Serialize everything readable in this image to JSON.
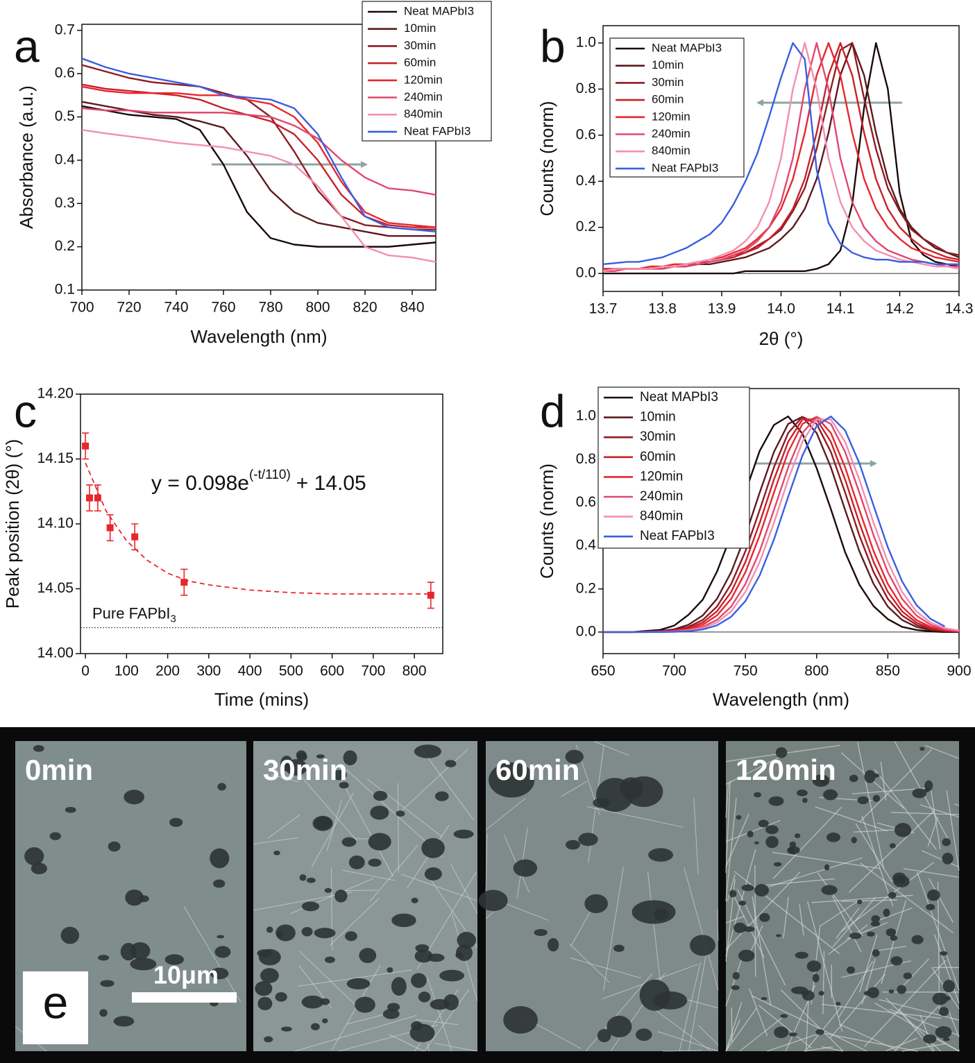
{
  "chart_data": [
    {
      "type": "line",
      "panel_label": "a",
      "xlabel": "Wavelength (nm)",
      "ylabel": "Absorbance (a.u.)",
      "x": [
        700,
        710,
        720,
        730,
        740,
        750,
        760,
        770,
        780,
        790,
        800,
        810,
        820,
        830,
        840,
        850
      ],
      "series": [
        {
          "name": "Neat MAPbI3",
          "color": "#1a0a0a",
          "values": [
            0.525,
            0.515,
            0.505,
            0.5,
            0.495,
            0.47,
            0.39,
            0.28,
            0.22,
            0.205,
            0.2,
            0.2,
            0.2,
            0.2,
            0.205,
            0.21
          ]
        },
        {
          "name": "10min",
          "color": "#5c1a1f",
          "values": [
            0.535,
            0.525,
            0.515,
            0.505,
            0.5,
            0.49,
            0.475,
            0.41,
            0.33,
            0.28,
            0.255,
            0.245,
            0.235,
            0.225,
            0.225,
            0.225
          ]
        },
        {
          "name": "30min",
          "color": "#8e1c22",
          "values": [
            0.62,
            0.605,
            0.59,
            0.58,
            0.575,
            0.57,
            0.555,
            0.54,
            0.5,
            0.42,
            0.33,
            0.27,
            0.25,
            0.245,
            0.24,
            0.24
          ]
        },
        {
          "name": "60min",
          "color": "#c8202a",
          "values": [
            0.575,
            0.565,
            0.56,
            0.555,
            0.55,
            0.54,
            0.52,
            0.505,
            0.49,
            0.46,
            0.4,
            0.32,
            0.27,
            0.25,
            0.245,
            0.245
          ]
        },
        {
          "name": "120min",
          "color": "#e8262e",
          "values": [
            0.57,
            0.56,
            0.555,
            0.555,
            0.555,
            0.55,
            0.55,
            0.54,
            0.53,
            0.5,
            0.44,
            0.35,
            0.28,
            0.255,
            0.25,
            0.245
          ]
        },
        {
          "name": "240min",
          "color": "#e2476e",
          "values": [
            0.52,
            0.515,
            0.515,
            0.51,
            0.51,
            0.51,
            0.51,
            0.505,
            0.5,
            0.48,
            0.45,
            0.4,
            0.36,
            0.335,
            0.33,
            0.32
          ]
        },
        {
          "name": "840min",
          "color": "#f28fb0",
          "values": [
            0.47,
            0.462,
            0.455,
            0.448,
            0.44,
            0.435,
            0.43,
            0.42,
            0.41,
            0.39,
            0.34,
            0.27,
            0.2,
            0.18,
            0.175,
            0.165
          ]
        },
        {
          "name": "Neat FAPbI3",
          "color": "#3a5ee0",
          "values": [
            0.635,
            0.615,
            0.6,
            0.59,
            0.58,
            0.57,
            0.55,
            0.545,
            0.54,
            0.52,
            0.46,
            0.36,
            0.27,
            0.245,
            0.24,
            0.235
          ]
        }
      ],
      "xlim": [
        700,
        850
      ],
      "ylim": [
        0.1,
        0.714
      ],
      "xticks": [
        700,
        720,
        740,
        760,
        780,
        800,
        820,
        840
      ],
      "yticks": [
        0.1,
        0.2,
        0.3,
        0.4,
        0.5,
        0.6,
        0.7
      ],
      "legend": "upper right"
    },
    {
      "type": "line",
      "panel_label": "b",
      "xlabel": "2θ (°)",
      "ylabel": "Counts (norm)",
      "x": [
        13.7,
        13.72,
        13.74,
        13.76,
        13.78,
        13.8,
        13.82,
        13.84,
        13.86,
        13.88,
        13.9,
        13.92,
        13.94,
        13.96,
        13.98,
        14,
        14.02,
        14.04,
        14.06,
        14.08,
        14.1,
        14.12,
        14.14,
        14.16,
        14.18,
        14.2,
        14.22,
        14.24,
        14.26,
        14.28,
        14.3
      ],
      "series": [
        {
          "name": "Neat MAPbI3",
          "color": "#1a0a0a",
          "values": [
            0,
            0,
            0,
            0,
            0,
            0,
            0,
            0,
            0,
            0,
            0,
            0,
            0.01,
            0.01,
            0.01,
            0.01,
            0.01,
            0.01,
            0.02,
            0.04,
            0.1,
            0.3,
            0.72,
            1,
            0.8,
            0.35,
            0.14,
            0.08,
            0.05,
            0.04,
            0.03
          ]
        },
        {
          "name": "10min",
          "color": "#5c1a1f",
          "values": [
            0.01,
            0.02,
            0.02,
            0.02,
            0.02,
            0.02,
            0.03,
            0.03,
            0.04,
            0.04,
            0.05,
            0.06,
            0.07,
            0.09,
            0.11,
            0.15,
            0.2,
            0.28,
            0.41,
            0.61,
            0.86,
            1,
            0.86,
            0.61,
            0.41,
            0.28,
            0.2,
            0.15,
            0.11,
            0.09,
            0.07
          ]
        },
        {
          "name": "30min",
          "color": "#8e1c22",
          "values": [
            0.02,
            0.02,
            0.02,
            0.02,
            0.03,
            0.03,
            0.03,
            0.04,
            0.05,
            0.05,
            0.06,
            0.08,
            0.09,
            0.12,
            0.15,
            0.19,
            0.27,
            0.37,
            0.54,
            0.76,
            0.97,
            1,
            0.76,
            0.54,
            0.37,
            0.27,
            0.19,
            0.15,
            0.12,
            0.09,
            0.08
          ]
        },
        {
          "name": "60min",
          "color": "#c8202a",
          "values": [
            0.01,
            0.02,
            0.02,
            0.02,
            0.02,
            0.03,
            0.03,
            0.04,
            0.04,
            0.05,
            0.06,
            0.07,
            0.09,
            0.11,
            0.15,
            0.2,
            0.28,
            0.41,
            0.61,
            0.86,
            1,
            0.86,
            0.61,
            0.41,
            0.28,
            0.2,
            0.15,
            0.11,
            0.09,
            0.07,
            0.06
          ]
        },
        {
          "name": "120min",
          "color": "#e8262e",
          "values": [
            0.02,
            0.02,
            0.02,
            0.02,
            0.03,
            0.03,
            0.04,
            0.04,
            0.05,
            0.06,
            0.07,
            0.09,
            0.11,
            0.15,
            0.2,
            0.28,
            0.41,
            0.61,
            0.86,
            1,
            0.86,
            0.61,
            0.41,
            0.28,
            0.2,
            0.15,
            0.11,
            0.09,
            0.07,
            0.06,
            0.05
          ]
        },
        {
          "name": "240min",
          "color": "#e2476e",
          "values": [
            0.01,
            0.01,
            0.02,
            0.02,
            0.02,
            0.02,
            0.03,
            0.03,
            0.04,
            0.05,
            0.06,
            0.08,
            0.1,
            0.14,
            0.2,
            0.31,
            0.5,
            0.8,
            1,
            0.8,
            0.5,
            0.31,
            0.2,
            0.14,
            0.1,
            0.08,
            0.06,
            0.05,
            0.04,
            0.03,
            0.03
          ]
        },
        {
          "name": "840min",
          "color": "#f28fb0",
          "values": [
            0.01,
            0.02,
            0.02,
            0.02,
            0.02,
            0.03,
            0.03,
            0.04,
            0.05,
            0.06,
            0.08,
            0.1,
            0.14,
            0.2,
            0.31,
            0.5,
            0.8,
            1,
            0.8,
            0.5,
            0.31,
            0.2,
            0.14,
            0.1,
            0.08,
            0.06,
            0.05,
            0.04,
            0.03,
            0.03,
            0.02
          ]
        },
        {
          "name": "Neat FAPbI3",
          "color": "#3a5ee0",
          "values": [
            0.04,
            0.045,
            0.05,
            0.05,
            0.06,
            0.07,
            0.09,
            0.11,
            0.14,
            0.17,
            0.22,
            0.3,
            0.4,
            0.52,
            0.68,
            0.85,
            1,
            0.93,
            0.45,
            0.22,
            0.13,
            0.09,
            0.07,
            0.06,
            0.06,
            0.05,
            0.05,
            0.05,
            0.04,
            0.04,
            0.04
          ]
        }
      ],
      "xlim": [
        13.7,
        14.3
      ],
      "ylim": [
        -0.078,
        1.075
      ],
      "xticks": [
        13.7,
        13.8,
        13.9,
        {
          "value": 14,
          "label": "14.0"
        },
        14.1,
        14.2,
        14.3
      ],
      "yticks": [
        {
          "value": 0,
          "label": "0.0"
        },
        0.2,
        0.4,
        0.6,
        0.8,
        {
          "value": 1,
          "label": "1.0"
        }
      ],
      "legend": "upper left"
    },
    {
      "type": "scatter",
      "panel_label": "c",
      "xlabel": "Time (mins)",
      "ylabel": "Peak position (2θ) (°)",
      "x": [
        0,
        10,
        30,
        60,
        120,
        240,
        840
      ],
      "values": [
        14.16,
        14.12,
        14.12,
        14.097,
        14.09,
        14.055,
        14.045
      ],
      "errors": [
        0.01,
        0.01,
        0.01,
        0.01,
        0.01,
        0.01,
        0.01
      ],
      "color": "#e8262e",
      "fit": {
        "x": [
          0,
          50,
          100,
          150,
          200,
          250,
          300,
          400,
          500,
          600,
          700,
          840
        ],
        "values": [
          14.147,
          14.11,
          14.087,
          14.072,
          14.062,
          14.056,
          14.053,
          14.049,
          14.047,
          14.046,
          14.046,
          14.046
        ]
      },
      "equation": {
        "text": "y = 0.098e",
        "exponent": "(-t/110)",
        "tail": "+ 14.05"
      },
      "reference": {
        "value": 14.02,
        "label": "Pure FAPbI",
        "label_sub": "3"
      },
      "xlim": [
        -12,
        869
      ],
      "ylim": [
        14,
        14.2
      ],
      "xticks": [
        0,
        100,
        200,
        300,
        400,
        500,
        600,
        700,
        800
      ],
      "yticks": [
        {
          "value": 14,
          "label": "14.00"
        },
        14.05,
        {
          "value": 14.1,
          "label": "14.10"
        },
        14.15,
        {
          "value": 14.2,
          "label": "14.20"
        }
      ]
    },
    {
      "type": "line",
      "panel_label": "d",
      "xlabel": "Wavelength (nm)",
      "ylabel": "Counts (norm)",
      "x": [
        650,
        660,
        670,
        680,
        690,
        700,
        710,
        720,
        730,
        740,
        750,
        760,
        770,
        780,
        790,
        800,
        810,
        820,
        830,
        840,
        850,
        860,
        870,
        880,
        890,
        900
      ],
      "series": [
        {
          "name": "Neat MAPbI3",
          "color": "#1a0a0a",
          "values": [
            0,
            0,
            0,
            0.005,
            0.01,
            0.03,
            0.08,
            0.15,
            0.28,
            0.45,
            0.65,
            0.84,
            0.96,
            1,
            0.92,
            0.76,
            0.57,
            0.37,
            0.22,
            0.12,
            0.06,
            0.024,
            0.01,
            0.003,
            0,
            0
          ]
        },
        {
          "name": "10min",
          "color": "#5c1a1f",
          "values": [
            0,
            0,
            0,
            0.002,
            0.005,
            0.013,
            0.034,
            0.077,
            0.154,
            0.278,
            0.448,
            0.647,
            0.835,
            0.965,
            0.998,
            0.923,
            0.764,
            0.566,
            0.375,
            0.223,
            0.118,
            0.056,
            0.024,
            0.009,
            0.003,
            0.001
          ]
        },
        {
          "name": "30min",
          "color": "#8e1c22",
          "values": [
            0,
            0,
            0,
            0.001,
            0.003,
            0.009,
            0.024,
            0.056,
            0.118,
            0.223,
            0.375,
            0.566,
            0.764,
            0.923,
            0.998,
            0.965,
            0.835,
            0.647,
            0.448,
            0.278,
            0.154,
            0.077,
            0.034,
            0.013,
            0.005,
            0.002
          ]
        },
        {
          "name": "60min",
          "color": "#c8202a",
          "values": [
            0,
            0,
            0,
            0.001,
            0.002,
            0.007,
            0.018,
            0.044,
            0.096,
            0.186,
            0.325,
            0.506,
            0.707,
            0.882,
            0.986,
            0.986,
            0.882,
            0.707,
            0.506,
            0.325,
            0.186,
            0.096,
            0.044,
            0.018,
            0.007,
            0.002
          ]
        },
        {
          "name": "120min",
          "color": "#e8262e",
          "values": [
            0,
            0,
            0,
            0.001,
            0.002,
            0.005,
            0.013,
            0.034,
            0.077,
            0.154,
            0.278,
            0.448,
            0.647,
            0.835,
            0.965,
            0.998,
            0.923,
            0.764,
            0.566,
            0.375,
            0.223,
            0.118,
            0.056,
            0.024,
            0.009,
            0.003
          ]
        },
        {
          "name": "240min",
          "color": "#e2476e",
          "values": [
            0,
            0,
            0,
            0,
            0.001,
            0.003,
            0.009,
            0.024,
            0.056,
            0.118,
            0.223,
            0.375,
            0.566,
            0.764,
            0.923,
            0.998,
            0.965,
            0.835,
            0.647,
            0.448,
            0.278,
            0.154,
            0.077,
            0.034,
            0.013,
            0.005
          ]
        },
        {
          "name": "840min",
          "color": "#f28fb0",
          "values": [
            0,
            0,
            0,
            0,
            0.001,
            0.002,
            0.007,
            0.018,
            0.044,
            0.096,
            0.186,
            0.325,
            0.506,
            0.707,
            0.882,
            0.986,
            0.986,
            0.882,
            0.707,
            0.506,
            0.325,
            0.186,
            0.096,
            0.044,
            0.018,
            0.007
          ]
        },
        {
          "name": "Neat FAPbI3",
          "color": "#3a5ee0",
          "values": [
            0,
            0,
            0,
            0,
            0,
            0.001,
            0.004,
            0.012,
            0.031,
            0.071,
            0.144,
            0.263,
            0.429,
            0.627,
            0.818,
            0.956,
            1,
            0.935,
            0.783,
            0.586,
            0.393,
            0.235,
            0.126,
            0.061,
            0.026,
            null
          ]
        }
      ],
      "xlim": [
        650,
        900
      ],
      "ylim": [
        -0.1,
        1.129
      ],
      "xticks": [
        650,
        700,
        750,
        800,
        850,
        900
      ],
      "yticks": [
        {
          "value": 0,
          "label": "0.0"
        },
        0.2,
        0.4,
        0.6,
        0.8,
        {
          "value": 1,
          "label": "1.0"
        }
      ],
      "legend": "upper left"
    }
  ],
  "sem_panel": {
    "label": "e",
    "scale_bar": "10μm",
    "frames": [
      "0min",
      "30min",
      "60min",
      "120min"
    ]
  }
}
